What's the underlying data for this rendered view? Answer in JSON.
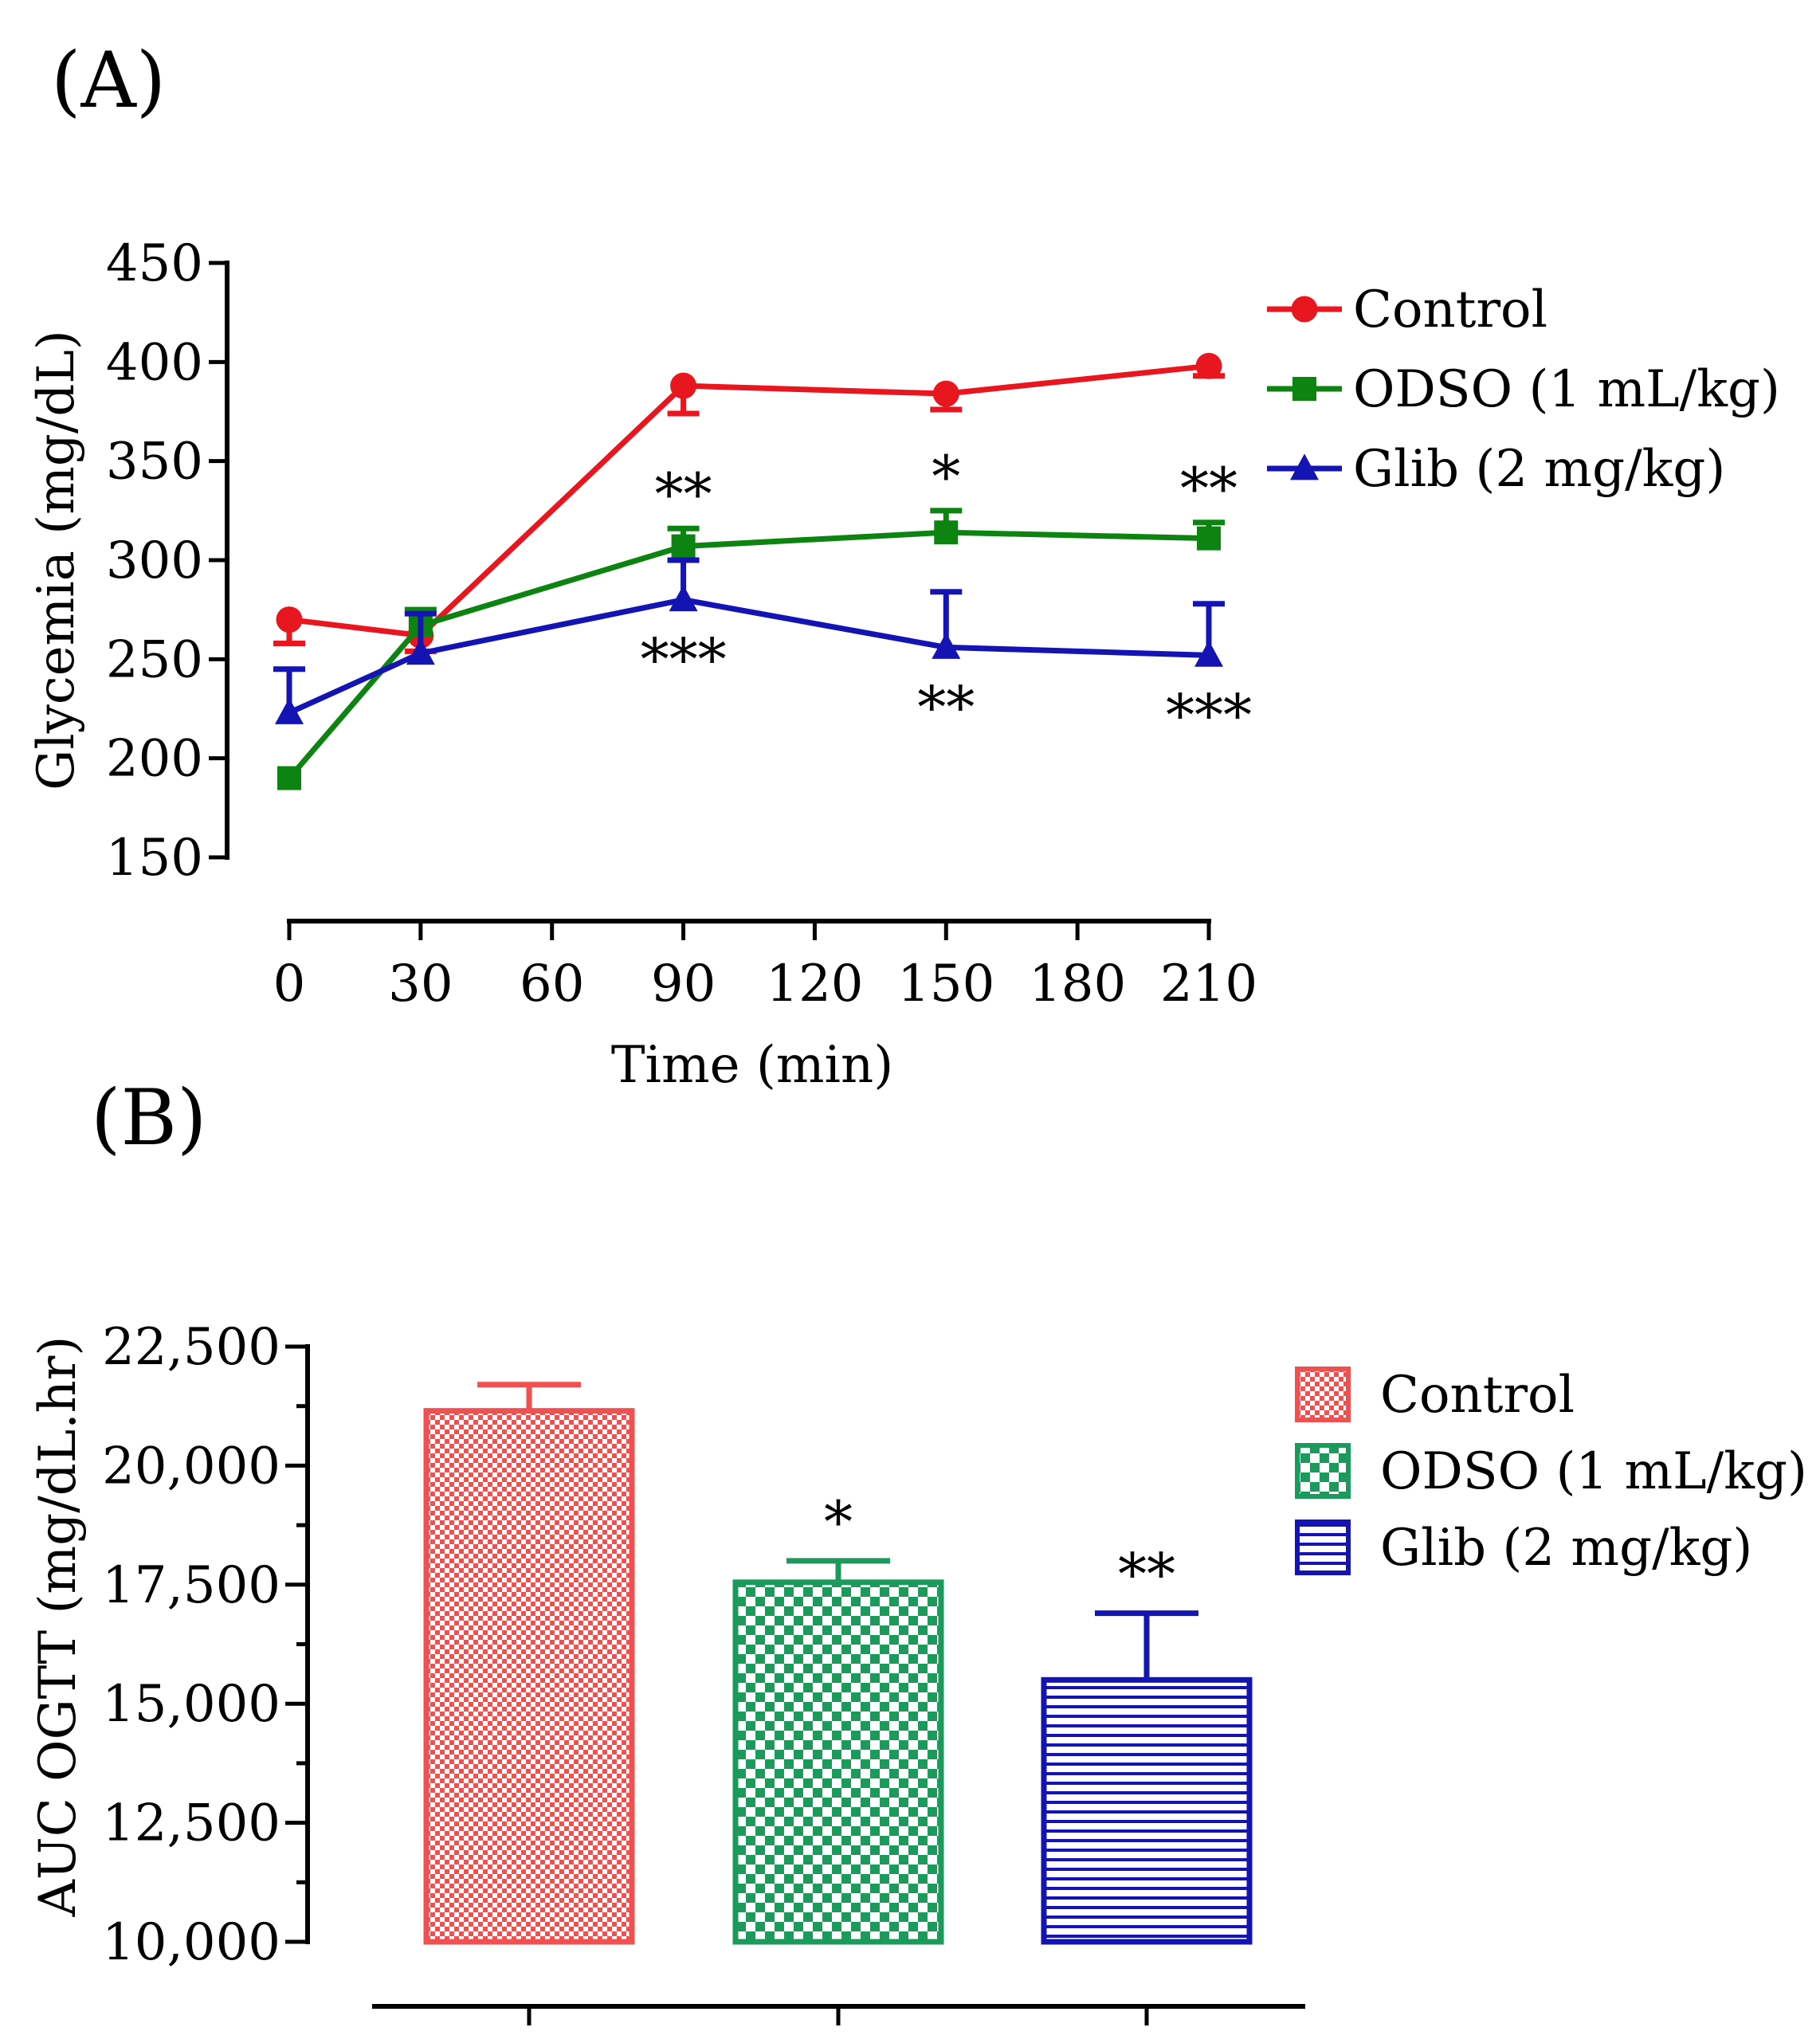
{
  "chart_data": [
    {
      "panel_label": "(A)",
      "type": "line",
      "xlabel": "Time (min)",
      "ylabel": "Glycemia (mg/dL)",
      "x_ticks": [
        "0",
        "30",
        "60",
        "90",
        "120",
        "150",
        "180",
        "210"
      ],
      "y_ticks": [
        "150",
        "200",
        "250",
        "300",
        "350",
        "400",
        "450"
      ],
      "xlim": [
        0,
        210
      ],
      "ylim": [
        150,
        450
      ],
      "x": [
        0,
        30,
        90,
        150,
        210
      ],
      "series": [
        {
          "name": "Control",
          "color": "#e8171f",
          "marker": "circle",
          "values": [
            270,
            262,
            388,
            384,
            398
          ],
          "errors": [
            12,
            8,
            14,
            8,
            5
          ],
          "error_dir": [
            -1,
            -1,
            -1,
            -1,
            -1
          ],
          "annotations_above": [
            "",
            "",
            "",
            "",
            ""
          ],
          "annotations_below": [
            "",
            "",
            "",
            "",
            ""
          ]
        },
        {
          "name": "ODSO (1 mL/kg)",
          "color": "#0d8412",
          "marker": "square",
          "values": [
            190,
            267,
            307,
            314,
            311
          ],
          "errors": [
            0,
            8,
            9,
            11,
            8
          ],
          "error_dir": [
            1,
            1,
            1,
            1,
            1
          ],
          "annotations_above": [
            "",
            "",
            "**",
            "*",
            "**"
          ],
          "annotations_below": [
            "",
            "",
            "",
            "",
            ""
          ]
        },
        {
          "name": "Glib (2 mg/kg)",
          "color": "#1414b4",
          "marker": "triangle",
          "values": [
            223,
            253,
            280,
            256,
            252
          ],
          "errors": [
            22,
            20,
            20,
            28,
            26
          ],
          "error_dir": [
            1,
            1,
            1,
            1,
            1
          ],
          "annotations_above": [
            "",
            "",
            "",
            "",
            ""
          ],
          "annotations_below": [
            "",
            "",
            "***",
            "**",
            "***"
          ]
        }
      ]
    },
    {
      "panel_label": "(B)",
      "type": "bar",
      "ylabel": "AUC OGTT (mg/dL.hr)",
      "y_ticks": [
        "10,000",
        "12,500",
        "15,000",
        "17,500",
        "20,000",
        "22,500"
      ],
      "ylim": [
        10000,
        22500
      ],
      "categories": [
        "Control",
        "ODSO (1 mL/kg)",
        "Glib (2 mg/kg)"
      ],
      "values": [
        21150,
        17550,
        15500
      ],
      "errors": [
        550,
        450,
        1400
      ],
      "annotations": [
        "",
        "*",
        "**"
      ],
      "colors": [
        "#f05050",
        "#1c9a5c",
        "#1414b4"
      ],
      "patterns": [
        "fine-check",
        "checker",
        "horizontal-lines"
      ]
    }
  ]
}
